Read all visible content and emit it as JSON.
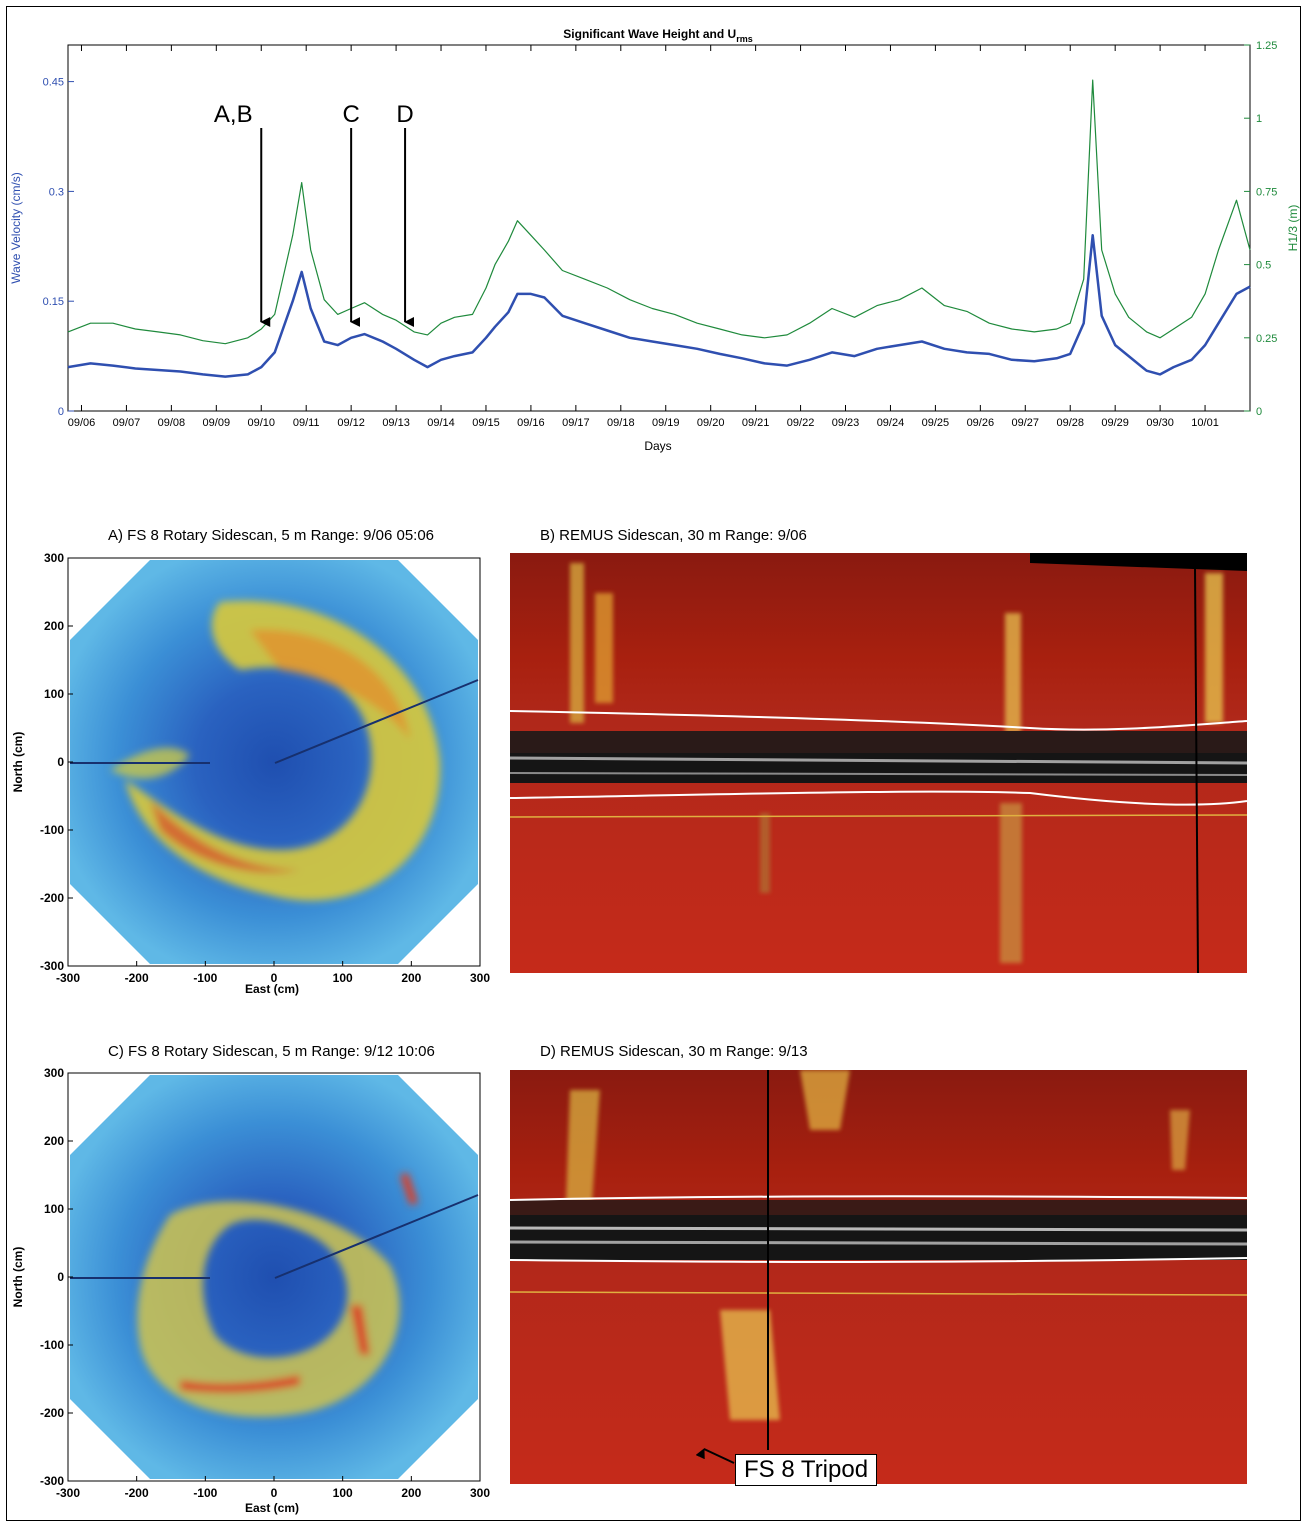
{
  "chart_data": {
    "type": "line",
    "title": "Significant Wave Height and U",
    "title_subscript": "rms",
    "xlabel": "Days",
    "ylabel_left": "Wave Velocity (cm/s)",
    "ylabel_right": "H1/3 (m)",
    "x_ticks": [
      "09/06",
      "09/07",
      "09/08",
      "09/09",
      "09/10",
      "09/11",
      "09/12",
      "09/13",
      "09/14",
      "09/15",
      "09/16",
      "09/17",
      "09/18",
      "09/19",
      "09/20",
      "09/21",
      "09/22",
      "09/23",
      "09/24",
      "09/25",
      "09/26",
      "09/27",
      "09/28",
      "09/29",
      "09/30",
      "10/01"
    ],
    "y_left_ticks": [
      "0",
      "0.15",
      "0.3",
      "0.45"
    ],
    "y_right_ticks": [
      "0",
      "0.25",
      "0.5",
      "0.75",
      "1",
      "1.25"
    ],
    "ylim_left": [
      0,
      0.5
    ],
    "ylim_right": [
      0,
      1.25
    ],
    "xlim_days": [
      0,
      26.3
    ],
    "colors": {
      "velocity": "#2f4fb0",
      "height": "#1f8a3c",
      "left_axis": "#2f4fb0",
      "right_axis": "#1f8a3c"
    },
    "series": [
      {
        "name": "Wave Velocity",
        "axis": "left",
        "x": [
          0,
          0.5,
          1,
          1.5,
          2,
          2.5,
          3,
          3.5,
          4,
          4.3,
          4.6,
          5,
          5.2,
          5.4,
          5.7,
          6,
          6.3,
          6.6,
          7,
          7.3,
          7.7,
          8,
          8.3,
          8.6,
          9,
          9.3,
          9.5,
          9.8,
          10,
          10.3,
          10.6,
          11,
          11.5,
          12,
          12.5,
          13,
          13.5,
          14,
          14.5,
          15,
          15.5,
          16,
          16.5,
          17,
          17.5,
          18,
          18.5,
          19,
          19.5,
          20,
          20.5,
          21,
          21.5,
          22,
          22.3,
          22.6,
          22.8,
          23,
          23.3,
          23.6,
          24,
          24.3,
          24.6,
          25,
          25.3,
          25.6,
          26,
          26.3
        ],
        "y": [
          0.06,
          0.065,
          0.062,
          0.058,
          0.056,
          0.054,
          0.05,
          0.047,
          0.05,
          0.06,
          0.08,
          0.15,
          0.19,
          0.14,
          0.095,
          0.09,
          0.1,
          0.105,
          0.095,
          0.085,
          0.07,
          0.06,
          0.07,
          0.075,
          0.08,
          0.1,
          0.115,
          0.135,
          0.16,
          0.16,
          0.155,
          0.13,
          0.12,
          0.11,
          0.1,
          0.095,
          0.09,
          0.085,
          0.078,
          0.072,
          0.065,
          0.062,
          0.07,
          0.08,
          0.075,
          0.085,
          0.09,
          0.095,
          0.085,
          0.08,
          0.078,
          0.07,
          0.068,
          0.072,
          0.078,
          0.12,
          0.24,
          0.13,
          0.09,
          0.075,
          0.055,
          0.05,
          0.06,
          0.07,
          0.09,
          0.12,
          0.16,
          0.17
        ]
      },
      {
        "name": "H1/3",
        "axis": "right",
        "x": [
          0,
          0.5,
          1,
          1.5,
          2,
          2.5,
          3,
          3.5,
          4,
          4.3,
          4.6,
          5,
          5.2,
          5.4,
          5.7,
          6,
          6.3,
          6.6,
          7,
          7.3,
          7.7,
          8,
          8.3,
          8.6,
          9,
          9.3,
          9.5,
          9.8,
          10,
          10.3,
          10.6,
          11,
          11.5,
          12,
          12.5,
          13,
          13.5,
          14,
          14.5,
          15,
          15.5,
          16,
          16.5,
          17,
          17.5,
          18,
          18.5,
          19,
          19.5,
          20,
          20.5,
          21,
          21.5,
          22,
          22.3,
          22.6,
          22.8,
          23,
          23.3,
          23.6,
          24,
          24.3,
          24.6,
          25,
          25.3,
          25.6,
          26,
          26.3
        ],
        "y": [
          0.27,
          0.3,
          0.3,
          0.28,
          0.27,
          0.26,
          0.24,
          0.23,
          0.25,
          0.28,
          0.33,
          0.6,
          0.78,
          0.55,
          0.38,
          0.33,
          0.35,
          0.37,
          0.33,
          0.31,
          0.27,
          0.26,
          0.3,
          0.32,
          0.33,
          0.42,
          0.5,
          0.58,
          0.65,
          0.6,
          0.55,
          0.48,
          0.45,
          0.42,
          0.38,
          0.35,
          0.33,
          0.3,
          0.28,
          0.26,
          0.25,
          0.26,
          0.3,
          0.35,
          0.32,
          0.36,
          0.38,
          0.42,
          0.36,
          0.34,
          0.3,
          0.28,
          0.27,
          0.28,
          0.3,
          0.45,
          1.13,
          0.55,
          0.4,
          0.32,
          0.27,
          0.25,
          0.28,
          0.32,
          0.4,
          0.55,
          0.72,
          0.55
        ]
      }
    ],
    "annotations": [
      {
        "label": "A,B",
        "day": 4.3
      },
      {
        "label": "C",
        "day": 6.3
      },
      {
        "label": "D",
        "day": 7.5
      }
    ]
  },
  "panels": {
    "a": {
      "title": "A) FS 8 Rotary Sidescan, 5 m Range: 9/06 05:06",
      "xlabel": "East (cm)",
      "ylabel": "North (cm)",
      "x_ticks": [
        "-300",
        "-200",
        "-100",
        "0",
        "100",
        "200",
        "300"
      ],
      "y_ticks": [
        "300",
        "200",
        "100",
        "0",
        "-100",
        "-200",
        "-300"
      ]
    },
    "b": {
      "title": "B) REMUS Sidescan, 30 m Range: 9/06"
    },
    "c": {
      "title": "C) FS 8 Rotary Sidescan, 5 m Range: 9/12 10:06",
      "xlabel": "East (cm)",
      "ylabel": "North (cm)",
      "x_ticks": [
        "-300",
        "-200",
        "-100",
        "0",
        "100",
        "200",
        "300"
      ],
      "y_ticks": [
        "300",
        "200",
        "100",
        "0",
        "-100",
        "-200",
        "-300"
      ]
    },
    "d": {
      "title": "D) REMUS Sidescan, 30  m Range: 9/13",
      "callout": "FS 8 Tripod"
    }
  }
}
